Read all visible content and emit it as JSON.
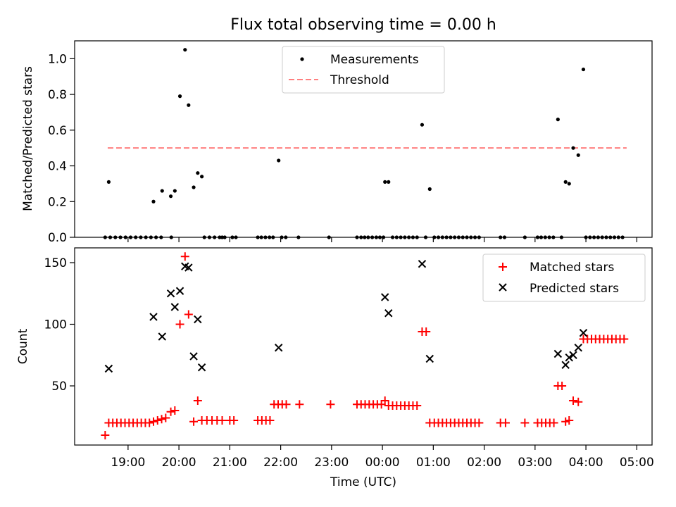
{
  "chart_data": [
    {
      "type": "scatter",
      "title": "Flux total observing time = 0.00 h",
      "xlabel": "",
      "ylabel": "Matched/Predicted stars",
      "ylim": [
        0,
        1.1
      ],
      "yticks": [
        "0.0",
        "0.2",
        "0.4",
        "0.6",
        "0.8",
        "1.0"
      ],
      "legend": {
        "position": "top-center",
        "entries": [
          "Measurements",
          "Threshold"
        ]
      },
      "threshold": {
        "name": "Threshold",
        "value": 0.5,
        "x_start": 18.6,
        "x_end": 28.8,
        "color": "#ff7f7f"
      },
      "series": [
        {
          "name": "Measurements",
          "color": "#000000",
          "x": [
            18.62,
            19.5,
            19.67,
            19.84,
            19.92,
            20.02,
            20.12,
            20.19,
            20.29,
            20.37,
            20.45,
            21.96,
            24.05,
            24.12,
            24.78,
            24.93,
            27.45,
            27.6,
            27.67,
            27.75,
            27.85,
            27.95,
            18.55,
            18.65,
            18.75,
            18.85,
            18.95,
            19.05,
            19.15,
            19.25,
            19.35,
            19.45,
            19.55,
            19.65,
            19.85,
            20.5,
            20.6,
            20.7,
            20.8,
            20.85,
            20.9,
            21.05,
            21.12,
            21.55,
            21.62,
            21.7,
            21.78,
            21.85,
            22.02,
            22.1,
            22.35,
            22.95,
            23.5,
            23.58,
            23.65,
            23.72,
            23.8,
            23.88,
            23.95,
            24.02,
            24.2,
            24.28,
            24.36,
            24.44,
            24.52,
            24.6,
            24.68,
            24.85,
            25.02,
            25.1,
            25.18,
            25.26,
            25.34,
            25.42,
            25.5,
            25.58,
            25.66,
            25.74,
            25.82,
            25.9,
            26.32,
            26.4,
            26.8,
            27.05,
            27.12,
            27.2,
            27.28,
            27.36,
            27.52,
            28.0,
            28.08,
            28.16,
            28.24,
            28.32,
            28.4,
            28.48,
            28.56,
            28.64,
            28.72
          ],
          "y": [
            0.31,
            0.2,
            0.26,
            0.23,
            0.26,
            0.79,
            1.05,
            0.74,
            0.28,
            0.36,
            0.34,
            0.43,
            0.31,
            0.31,
            0.63,
            0.27,
            0.66,
            0.31,
            0.3,
            0.5,
            0.46,
            0.94,
            0,
            0,
            0,
            0,
            0,
            0,
            0,
            0,
            0,
            0,
            0,
            0,
            0,
            0,
            0,
            0,
            0,
            0,
            0,
            0,
            0,
            0,
            0,
            0,
            0,
            0,
            0,
            0,
            0,
            0,
            0,
            0,
            0,
            0,
            0,
            0,
            0,
            0,
            0,
            0,
            0,
            0,
            0,
            0,
            0,
            0,
            0,
            0,
            0,
            0,
            0,
            0,
            0,
            0,
            0,
            0,
            0,
            0,
            0,
            0,
            0,
            0,
            0,
            0,
            0,
            0,
            0,
            0,
            0,
            0,
            0,
            0,
            0,
            0,
            0,
            0,
            0
          ]
        }
      ]
    },
    {
      "type": "scatter",
      "title": "",
      "xlabel": "Time (UTC)",
      "ylabel": "Count",
      "ylim": [
        2,
        162
      ],
      "yticks": [
        "50",
        "100",
        "150"
      ],
      "xlim": [
        17.95,
        29.3
      ],
      "xticks": [
        "19:00",
        "20:00",
        "21:00",
        "22:00",
        "23:00",
        "00:00",
        "01:00",
        "02:00",
        "03:00",
        "04:00",
        "05:00"
      ],
      "legend": {
        "position": "top-right",
        "entries": [
          "Matched stars",
          "Predicted stars"
        ]
      },
      "series": [
        {
          "name": "Matched stars",
          "marker": "plus",
          "color": "#ff0000",
          "x": [
            18.55,
            18.62,
            18.7,
            18.78,
            18.86,
            18.94,
            19.02,
            19.1,
            19.18,
            19.26,
            19.34,
            19.42,
            19.5,
            19.58,
            19.66,
            19.74,
            19.84,
            19.92,
            20.02,
            20.12,
            20.19,
            20.29,
            20.37,
            20.45,
            20.55,
            20.65,
            20.75,
            20.85,
            21.0,
            21.08,
            21.55,
            21.63,
            21.71,
            21.79,
            21.87,
            21.95,
            22.03,
            22.11,
            22.37,
            22.98,
            23.5,
            23.58,
            23.66,
            23.74,
            23.82,
            23.9,
            23.98,
            24.05,
            24.12,
            24.2,
            24.28,
            24.36,
            24.44,
            24.52,
            24.6,
            24.68,
            24.78,
            24.86,
            24.93,
            25.02,
            25.1,
            25.18,
            25.26,
            25.34,
            25.42,
            25.5,
            25.58,
            25.66,
            25.74,
            25.82,
            25.9,
            26.32,
            26.42,
            26.8,
            27.05,
            27.13,
            27.21,
            27.29,
            27.37,
            27.45,
            27.53,
            27.6,
            27.67,
            27.75,
            27.85,
            27.95,
            28.03,
            28.11,
            28.19,
            28.27,
            28.35,
            28.43,
            28.51,
            28.59,
            28.67,
            28.75
          ],
          "y": [
            10,
            20,
            20,
            20,
            20,
            20,
            20,
            20,
            20,
            20,
            20,
            20,
            21,
            22,
            23,
            24,
            29,
            30,
            100,
            155,
            108,
            21,
            38,
            22,
            22,
            22,
            22,
            22,
            22,
            22,
            22,
            22,
            22,
            22,
            35,
            35,
            35,
            35,
            35,
            35,
            35,
            35,
            35,
            35,
            35,
            35,
            35,
            38,
            34,
            34,
            34,
            34,
            34,
            34,
            34,
            34,
            94,
            94,
            20,
            20,
            20,
            20,
            20,
            20,
            20,
            20,
            20,
            20,
            20,
            20,
            20,
            20,
            20,
            20,
            20,
            20,
            20,
            20,
            20,
            50,
            50,
            21,
            22,
            38,
            37,
            88,
            88,
            88,
            88,
            88,
            88,
            88,
            88,
            88,
            88,
            88
          ]
        },
        {
          "name": "Predicted stars",
          "marker": "x",
          "color": "#000000",
          "x": [
            18.62,
            19.5,
            19.67,
            19.84,
            19.92,
            20.02,
            20.12,
            20.19,
            20.29,
            20.37,
            20.45,
            21.96,
            24.05,
            24.12,
            24.78,
            24.93,
            27.45,
            27.6,
            27.67,
            27.75,
            27.85,
            27.95
          ],
          "y": [
            64,
            106,
            90,
            125,
            114,
            127,
            147,
            146,
            74,
            104,
            65,
            81,
            122,
            109,
            149,
            72,
            76,
            67,
            73,
            75,
            81,
            93
          ]
        }
      ]
    }
  ]
}
